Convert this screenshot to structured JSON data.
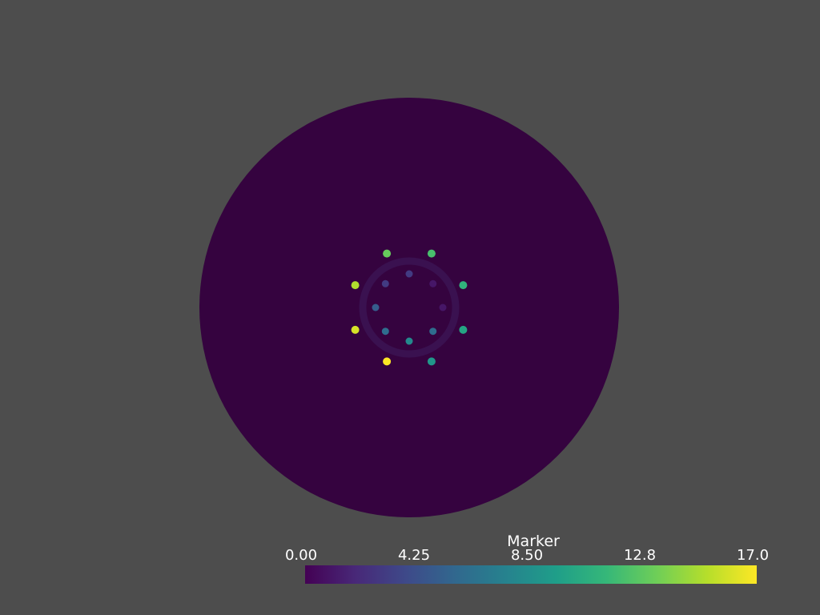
{
  "background_color": "#4d4d4d",
  "scene": {
    "disk_color": "#35033f",
    "ring_color": "#3a1150",
    "marker_value_min": 0,
    "marker_value_max": 17,
    "markers_inner": [
      {
        "value": 3
      },
      {
        "value": 1
      },
      {
        "value": 1
      },
      {
        "value": 6
      },
      {
        "value": 8
      },
      {
        "value": 6
      },
      {
        "value": 5
      },
      {
        "value": 3
      }
    ],
    "markers_outer": [
      {
        "value": 12
      },
      {
        "value": 11
      },
      {
        "value": 10
      },
      {
        "value": 9
      },
      {
        "value": 17
      },
      {
        "value": 16
      },
      {
        "value": 15
      },
      {
        "value": 13
      }
    ]
  },
  "colorbar": {
    "title": "Marker",
    "ticks": [
      "0.00",
      "4.25",
      "8.50",
      "12.8",
      "17.0"
    ],
    "colormap": "viridis",
    "stops": [
      "#440154",
      "#482878",
      "#3e4989",
      "#31688e",
      "#26828e",
      "#1f9e89",
      "#35b779",
      "#6ece58",
      "#b5de2b",
      "#fde725"
    ]
  }
}
